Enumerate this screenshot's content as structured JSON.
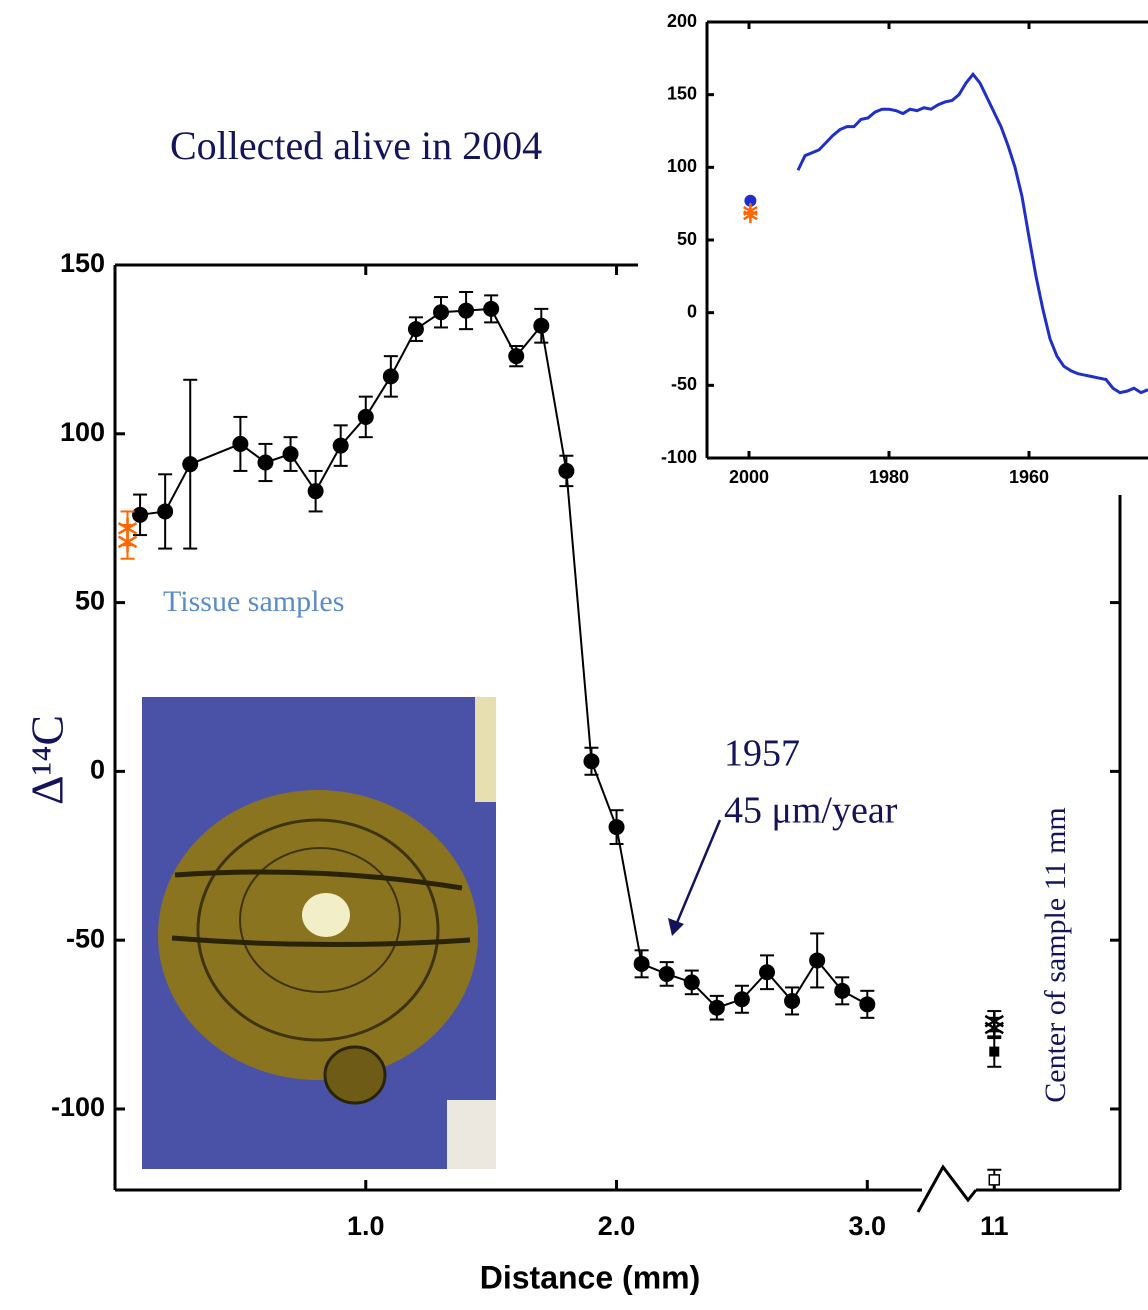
{
  "chart_data": [
    {
      "type": "line",
      "x_label": "Distance (mm)",
      "y_label": "Δ¹⁴C",
      "xlim": [
        0,
        3.25
      ],
      "xticks": [
        {
          "value": 1,
          "label": "1.0"
        },
        {
          "value": 2,
          "label": "2.0"
        },
        {
          "value": 3,
          "label": "3.0"
        }
      ],
      "x2lim": [
        10.85,
        11.55
      ],
      "x2ticks": [
        11
      ],
      "ylim": [
        -124,
        150
      ],
      "yticks": [
        150,
        100,
        50,
        0,
        -50,
        -100
      ],
      "series": [
        {
          "color": "#000000",
          "marker": "circle",
          "connect": true,
          "x": [
            0.1,
            0.2,
            0.3,
            0.5,
            0.6,
            0.7,
            0.8,
            0.9,
            1.0,
            1.1,
            1.2,
            1.3,
            1.4,
            1.5,
            1.6,
            1.7,
            1.8,
            1.9,
            2.0,
            2.1,
            2.2,
            2.3,
            2.4,
            2.5,
            2.6,
            2.7,
            2.8,
            2.9,
            3.0
          ],
          "values": [
            76,
            77,
            91,
            97,
            91.5,
            94,
            83,
            96.5,
            105,
            117,
            131,
            136,
            136.5,
            137,
            123,
            132,
            89,
            3,
            -16.5,
            -57,
            -60,
            -62.5,
            -70,
            -67.5,
            -59.5,
            -68,
            -56,
            -65,
            -69
          ],
          "errors": [
            6,
            11,
            25,
            8,
            5.5,
            5,
            6,
            6,
            6,
            6,
            3.5,
            4.5,
            5.5,
            4,
            3,
            5,
            4.5,
            4,
            5,
            4,
            3.5,
            3.5,
            3.5,
            4,
            5,
            4,
            8,
            4,
            4
          ]
        },
        {
          "color": "#ff6600",
          "marker": "asterisk",
          "connect": false,
          "x": [
            0.05,
            0.05
          ],
          "values": [
            72,
            68
          ],
          "errors": [
            5,
            5
          ]
        },
        {
          "color": "#000000",
          "marker": "asterisk",
          "connect": false,
          "axis": "x2",
          "x": [
            11,
            11
          ],
          "values": [
            -74,
            -76
          ],
          "errors": [
            3,
            3
          ]
        },
        {
          "color": "#000000",
          "marker": "square",
          "connect": false,
          "axis": "x2",
          "x": [
            11
          ],
          "values": [
            -83
          ],
          "errors": [
            4.5
          ]
        },
        {
          "color": "#000000",
          "marker": "open-square",
          "connect": false,
          "axis": "x2",
          "x": [
            11
          ],
          "values": [
            -121
          ],
          "errors": [
            3
          ]
        }
      ],
      "annotations": [
        {
          "text": "Collected alive in 2004",
          "color": "#14145a"
        },
        {
          "text": "Tissue samples",
          "color": "#5b8bc9"
        },
        {
          "text": "1957",
          "color": "#14145a"
        },
        {
          "text": "45 μm/year",
          "color": "#14145a"
        },
        {
          "text": "Center of sample 11 mm",
          "color": "#14145a"
        }
      ]
    },
    {
      "type": "line",
      "xlim": [
        2006,
        1943
      ],
      "xticks": [
        2000,
        1980,
        1960
      ],
      "ylim": [
        -100,
        200
      ],
      "yticks": [
        200,
        150,
        100,
        50,
        0,
        -50,
        -100
      ],
      "series": [
        {
          "color": "#1f2fc8",
          "marker": "none",
          "connect": true,
          "x": [
            1993,
            1992,
            1991,
            1990,
            1989,
            1988,
            1987,
            1986,
            1985,
            1984,
            1983,
            1982,
            1981,
            1980,
            1979,
            1978,
            1977,
            1976,
            1975,
            1974,
            1973,
            1972,
            1971,
            1970,
            1969,
            1968,
            1967,
            1966,
            1965,
            1964,
            1963,
            1962,
            1961,
            1960,
            1959,
            1958,
            1957,
            1956,
            1955,
            1954,
            1953,
            1952,
            1951,
            1950,
            1949,
            1948,
            1947,
            1946,
            1945,
            1944,
            1943
          ],
          "values": [
            98,
            108,
            110,
            112,
            117,
            122,
            126,
            128,
            128,
            133,
            134,
            138,
            140,
            140,
            139,
            137,
            140,
            139,
            141,
            140,
            143,
            145,
            146,
            150,
            158,
            164,
            158,
            148,
            138,
            128,
            115,
            100,
            80,
            52,
            25,
            2,
            -18,
            -30,
            -37,
            -40,
            -42,
            -43,
            -44,
            -45,
            -46,
            -52,
            -55,
            -54,
            -52,
            -55,
            -53
          ]
        },
        {
          "color": "#1f2fc8",
          "marker": "circle",
          "connect": false,
          "x": [
            1999.8
          ],
          "values": [
            77
          ]
        },
        {
          "color": "#ff6600",
          "marker": "asterisk",
          "connect": false,
          "x": [
            1999.8,
            1999.8
          ],
          "values": [
            70,
            67
          ]
        }
      ]
    }
  ]
}
